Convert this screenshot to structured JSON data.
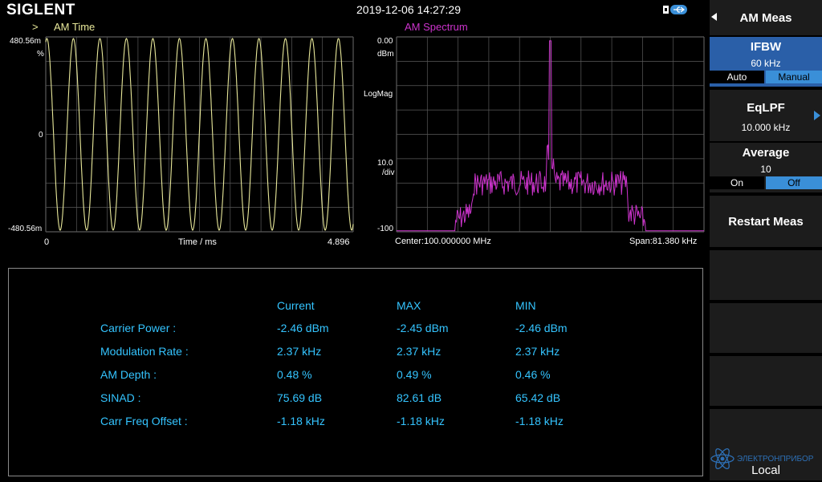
{
  "header": {
    "brand": "SIGLENT",
    "datetime": "2019-12-06 14:27:29"
  },
  "time_trace": {
    "marker": ">",
    "title": "AM  Time",
    "y_top": "480.56m",
    "y_unit": "%",
    "y_mid": "0",
    "y_bottom": "-480.56m",
    "x_start": "0",
    "x_label": "Time / ms",
    "x_end": "4.896",
    "color": "#e8e89a"
  },
  "spectrum_trace": {
    "title": "AM  Spectrum",
    "ref_level": "0.00",
    "ref_unit": "dBm",
    "scale_type": "LogMag",
    "scale_div": "10.0",
    "scale_div_unit": "/div",
    "bottom_level": "-100",
    "center": "Center:100.000000 MHz",
    "span": "Span:81.380 kHz",
    "color": "#cc33cc"
  },
  "results": {
    "headers": [
      "Current",
      "MAX",
      "MIN"
    ],
    "rows": [
      {
        "label": "Carrier Power :",
        "current": "-2.46 dBm",
        "max": "-2.45 dBm",
        "min": "-2.46 dBm"
      },
      {
        "label": "Modulation Rate :",
        "current": "2.37 kHz",
        "max": "2.37 kHz",
        "min": "2.37 kHz"
      },
      {
        "label": "AM Depth :",
        "current": "0.48 %",
        "max": "0.49 %",
        "min": "0.46 %"
      },
      {
        "label": "SINAD :",
        "current": "75.69 dB",
        "max": "82.61 dB",
        "min": "65.42 dB"
      },
      {
        "label": "Carr Freq Offset :",
        "current": "-1.18 kHz",
        "max": "-1.18 kHz",
        "min": "-1.18 kHz"
      }
    ]
  },
  "menu": {
    "title": "AM Meas",
    "ifbw": {
      "label": "IFBW",
      "value": "60 kHz",
      "opt_a": "Auto",
      "opt_b": "Manual"
    },
    "eqlpf": {
      "label": "EqLPF",
      "value": "10.000 kHz"
    },
    "average": {
      "label": "Average",
      "value": "10",
      "opt_a": "On",
      "opt_b": "Off"
    },
    "restart": "Restart Meas",
    "watermark": "ЭЛЕКТРОНПРИБОР",
    "status": "Local"
  },
  "colors": {
    "accent": "#34c4ff",
    "selected": "#3a8fd8",
    "grid": "#5a5a5a"
  }
}
